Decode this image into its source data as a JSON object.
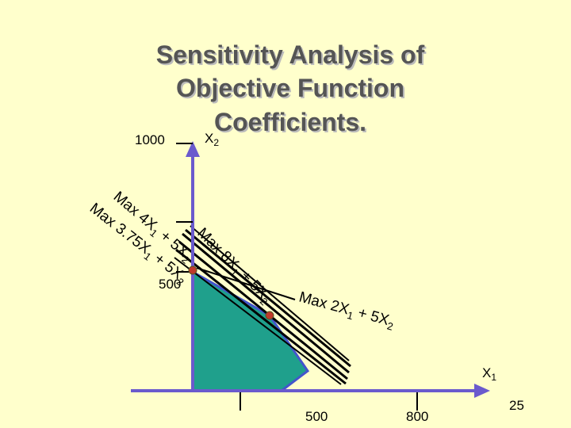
{
  "title": [
    "Sensitivity Analysis of",
    "Objective Function",
    "Coefficients."
  ],
  "axes": {
    "y_label": [
      "X",
      "2"
    ],
    "x_label": [
      "X",
      "1"
    ],
    "y_ticks": [
      "1000",
      "500"
    ],
    "x_ticks": [
      "500",
      "800"
    ]
  },
  "objective_labels": [
    {
      "parts": [
        "Max 4X",
        "1",
        " + 5X",
        "2"
      ]
    },
    {
      "parts": [
        "Max 3.75X",
        "1",
        " + 5X",
        "2"
      ]
    },
    {
      "parts": [
        "Max 8X",
        "1",
        " + 5X",
        "2"
      ]
    },
    {
      "parts": [
        "Max 2X",
        "1",
        " + 5X",
        "2"
      ]
    }
  ],
  "slide_number": "25"
}
